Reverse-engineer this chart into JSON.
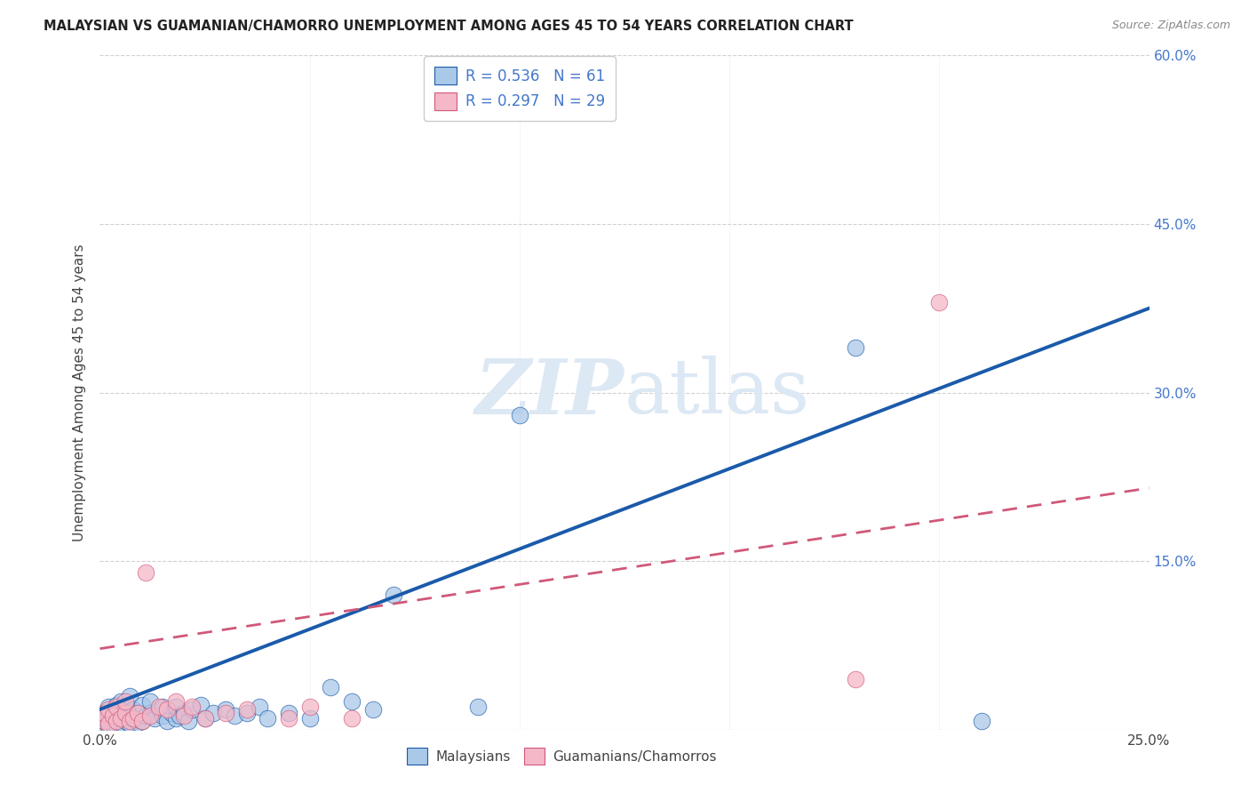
{
  "title": "MALAYSIAN VS GUAMANIAN/CHAMORRO UNEMPLOYMENT AMONG AGES 45 TO 54 YEARS CORRELATION CHART",
  "source": "Source: ZipAtlas.com",
  "ylabel": "Unemployment Among Ages 45 to 54 years",
  "xmin": 0.0,
  "xmax": 0.25,
  "ymin": 0.0,
  "ymax": 0.6,
  "legend_labels": [
    "Malaysians",
    "Guamanians/Chamorros"
  ],
  "r1": "0.536",
  "n1": "61",
  "r2": "0.297",
  "n2": "29",
  "color_blue": "#aac8e8",
  "color_pink": "#f4b8c8",
  "line_blue": "#1a5aaa",
  "line_pink": "#d05878",
  "watermark_color": "#dce8f4",
  "blue_line_x0": 0.0,
  "blue_line_y0": 0.018,
  "blue_line_x1": 0.25,
  "blue_line_y1": 0.375,
  "pink_line_x0": 0.0,
  "pink_line_y0": 0.072,
  "pink_line_x1": 0.25,
  "pink_line_y1": 0.215,
  "malaysian_x": [
    0.001,
    0.001,
    0.001,
    0.001,
    0.002,
    0.002,
    0.002,
    0.002,
    0.003,
    0.003,
    0.003,
    0.004,
    0.004,
    0.004,
    0.005,
    0.005,
    0.005,
    0.006,
    0.006,
    0.007,
    0.007,
    0.007,
    0.008,
    0.008,
    0.009,
    0.009,
    0.01,
    0.01,
    0.011,
    0.012,
    0.012,
    0.013,
    0.014,
    0.015,
    0.015,
    0.016,
    0.017,
    0.018,
    0.018,
    0.019,
    0.02,
    0.021,
    0.022,
    0.024,
    0.025,
    0.027,
    0.03,
    0.032,
    0.035,
    0.038,
    0.04,
    0.045,
    0.05,
    0.055,
    0.06,
    0.065,
    0.07,
    0.09,
    0.1,
    0.18,
    0.21
  ],
  "malaysian_y": [
    0.005,
    0.008,
    0.01,
    0.015,
    0.003,
    0.007,
    0.012,
    0.02,
    0.005,
    0.01,
    0.018,
    0.004,
    0.012,
    0.022,
    0.006,
    0.014,
    0.025,
    0.008,
    0.02,
    0.005,
    0.012,
    0.03,
    0.01,
    0.018,
    0.006,
    0.015,
    0.008,
    0.022,
    0.012,
    0.015,
    0.025,
    0.01,
    0.018,
    0.012,
    0.02,
    0.008,
    0.015,
    0.01,
    0.02,
    0.012,
    0.015,
    0.008,
    0.018,
    0.022,
    0.01,
    0.015,
    0.018,
    0.012,
    0.015,
    0.02,
    0.01,
    0.015,
    0.01,
    0.038,
    0.025,
    0.018,
    0.12,
    0.02,
    0.28,
    0.34,
    0.008
  ],
  "guamanian_x": [
    0.001,
    0.001,
    0.002,
    0.002,
    0.003,
    0.004,
    0.004,
    0.005,
    0.006,
    0.006,
    0.007,
    0.008,
    0.009,
    0.01,
    0.011,
    0.012,
    0.014,
    0.016,
    0.018,
    0.02,
    0.022,
    0.025,
    0.03,
    0.035,
    0.045,
    0.05,
    0.06,
    0.18,
    0.2
  ],
  "guamanian_y": [
    0.008,
    0.015,
    0.005,
    0.018,
    0.012,
    0.008,
    0.02,
    0.01,
    0.015,
    0.025,
    0.008,
    0.01,
    0.015,
    0.008,
    0.14,
    0.012,
    0.02,
    0.018,
    0.025,
    0.012,
    0.02,
    0.01,
    0.015,
    0.018,
    0.01,
    0.02,
    0.01,
    0.045,
    0.38
  ]
}
